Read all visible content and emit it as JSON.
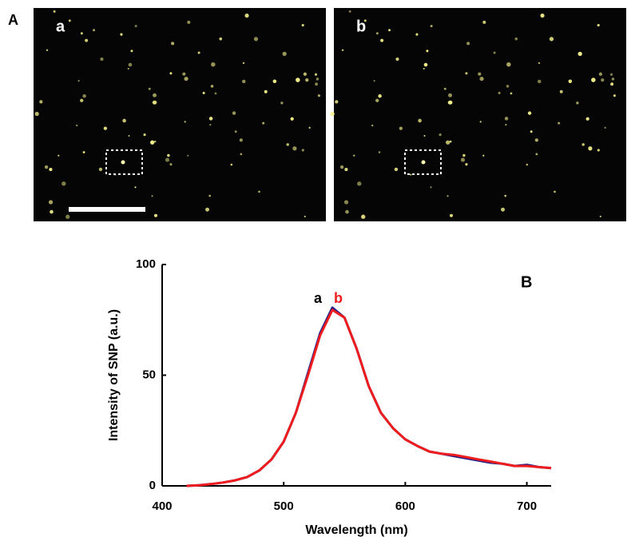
{
  "panel_labels": {
    "top": "A",
    "image_a": "a",
    "image_b": "b"
  },
  "chart_data": {
    "type": "line",
    "panel_label": "B",
    "x_label": "Wavelength (nm)",
    "y_label": "Intensity of SNP (a.u.)",
    "annotations": [
      "a",
      "b"
    ],
    "xlim": [
      400,
      720
    ],
    "xticks": [
      400,
      500,
      600,
      700
    ],
    "ylim": [
      0,
      100
    ],
    "yticks": [
      0,
      50,
      100
    ],
    "x": [
      420,
      430,
      440,
      450,
      460,
      470,
      480,
      490,
      500,
      510,
      520,
      530,
      540,
      550,
      560,
      570,
      580,
      590,
      600,
      610,
      620,
      630,
      640,
      650,
      660,
      670,
      680,
      690,
      700,
      710,
      720
    ],
    "series": [
      {
        "name": "a",
        "color": "#1c1c8a",
        "values": [
          0,
          0.3,
          0.8,
          1.5,
          2.5,
          4,
          7,
          12,
          20,
          33,
          51,
          69,
          80.5,
          76,
          62,
          45,
          33,
          26,
          21,
          18,
          15.5,
          14.5,
          13.5,
          12.5,
          11.5,
          10.5,
          10,
          9,
          9.5,
          8.5,
          8
        ]
      },
      {
        "name": "b",
        "color": "#ee1c1c",
        "values": [
          0,
          0.3,
          0.8,
          1.5,
          2.5,
          4,
          7,
          12,
          20,
          33,
          50,
          68,
          79.5,
          76,
          62,
          45,
          33,
          26,
          21,
          18,
          15.5,
          14.5,
          14,
          13,
          12,
          11,
          10,
          9,
          9,
          8.5,
          8
        ]
      }
    ]
  }
}
